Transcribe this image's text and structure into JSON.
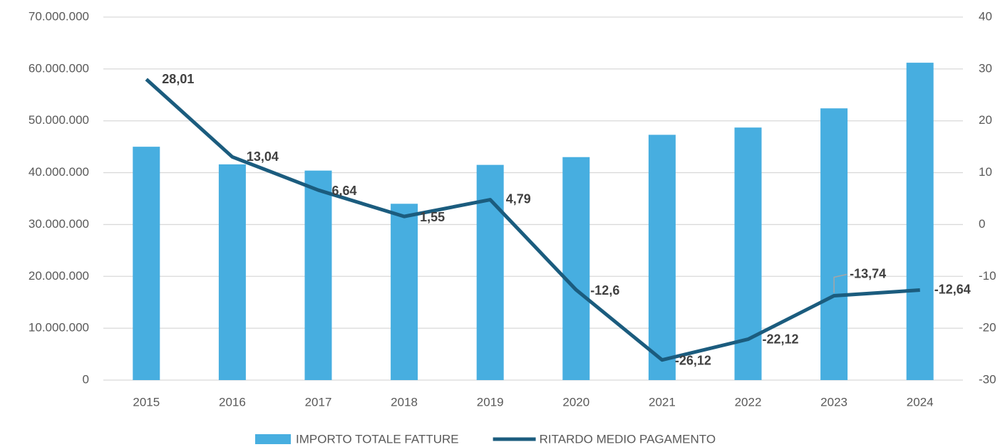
{
  "chart_data": {
    "type": "bar",
    "categories": [
      "2015",
      "2016",
      "2017",
      "2018",
      "2019",
      "2020",
      "2021",
      "2022",
      "2023",
      "2024"
    ],
    "series": [
      {
        "name": "IMPORTO TOTALE FATTURE",
        "type": "bar",
        "color": "#47aee0",
        "values": [
          45000000,
          41600000,
          40400000,
          34000000,
          41500000,
          43000000,
          47300000,
          48700000,
          52400000,
          61200000
        ]
      },
      {
        "name": "RITARDO MEDIO PAGAMENTO",
        "type": "line",
        "axis": "y2",
        "color": "#1b5c7e",
        "values": [
          28.01,
          13.04,
          6.64,
          1.55,
          4.79,
          -12.6,
          -26.12,
          -22.12,
          -13.74,
          -12.64
        ],
        "value_labels": [
          "28,01",
          "13,04",
          "6,64",
          "1,55",
          "4,79",
          "-12,6",
          "-26,12",
          "-22,12",
          "-13,74",
          "-12,64"
        ]
      }
    ],
    "ylim": [
      0,
      70000000
    ],
    "yticks": [
      0,
      {
        "value": 10000000,
        "label": "10.000.000"
      },
      {
        "value": 20000000,
        "label": "20.000.000"
      },
      {
        "value": 30000000,
        "label": "30.000.000"
      },
      {
        "value": 40000000,
        "label": "40.000.000"
      },
      {
        "value": 50000000,
        "label": "50.000.000"
      },
      {
        "value": 60000000,
        "label": "60.000.000"
      },
      {
        "value": 70000000,
        "label": "70.000.000"
      }
    ],
    "y2lim": [
      -30,
      40
    ],
    "y2ticks": [
      -30,
      -20,
      -10,
      0,
      10,
      20,
      30,
      40
    ],
    "grid": true,
    "legend": "bottom"
  }
}
